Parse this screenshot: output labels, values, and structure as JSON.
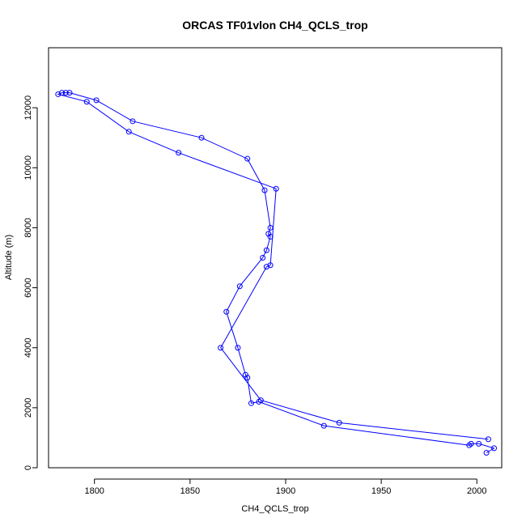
{
  "chart_data": {
    "type": "line",
    "title": "ORCAS TF01vlon CH4_QCLS_trop",
    "xlabel": "CH4_QCLS_trop",
    "ylabel": "Altitude (m)",
    "xlim": [
      1776,
      2013
    ],
    "ylim": [
      0,
      14000
    ],
    "xticks": [
      1800,
      1850,
      1900,
      1950,
      2000
    ],
    "yticks": [
      0,
      2000,
      4000,
      6000,
      8000,
      10000,
      12000
    ],
    "grid": false,
    "markers": "open-circle",
    "color": "#0000ff",
    "series": [
      {
        "x": [
          2005,
          2009,
          2001,
          1997,
          1996,
          1920,
          1886,
          1882,
          1880,
          1879,
          1875,
          1869,
          1876,
          1888,
          1890,
          1892,
          1891,
          1892,
          1889,
          1880,
          1856,
          1820,
          1801,
          1787,
          1785,
          1783,
          1781,
          1796,
          1818,
          1844,
          1895,
          1892,
          1890,
          1866,
          1887,
          1928,
          2006
        ],
        "y": [
          500,
          650,
          800,
          800,
          750,
          1400,
          2200,
          2150,
          3000,
          3100,
          4000,
          5200,
          6050,
          7000,
          7250,
          7700,
          7800,
          8000,
          9250,
          10300,
          11000,
          11550,
          12250,
          12500,
          12500,
          12500,
          12450,
          12200,
          11200,
          10500,
          9300,
          6750,
          6700,
          4000,
          2250,
          1500,
          950
        ]
      }
    ]
  }
}
